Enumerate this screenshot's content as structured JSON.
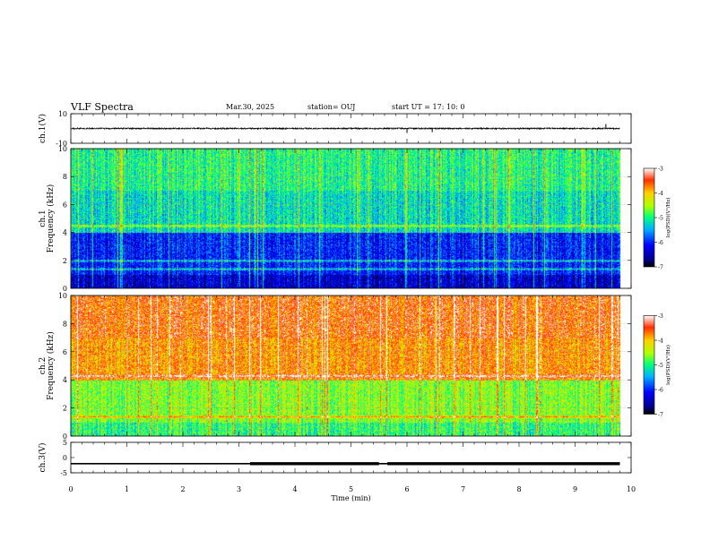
{
  "header": {
    "title": "VLF Spectra",
    "date": "Mar.30, 2025",
    "station": "station= OUJ",
    "start": "start  UT  =   17: 10: 0"
  },
  "chart_data": [
    {
      "type": "line",
      "panel": "ch1-waveform",
      "ylabel": "ch.1(V)",
      "ylim": [
        -10,
        10
      ],
      "yticks": [
        "10",
        "-10"
      ],
      "xlim": [
        0,
        10
      ],
      "series": [
        {
          "values": [
            0,
            0.1,
            0,
            -0.2,
            0.1,
            0,
            0.2,
            -0.1,
            0,
            0.1,
            0,
            -0.1
          ]
        }
      ],
      "spikes": [
        {
          "x": 6.0,
          "y": -3
        },
        {
          "x": 6.45,
          "y": -2.5
        },
        {
          "x": 9.55,
          "y": 3
        }
      ],
      "grid": false
    },
    {
      "type": "heatmap",
      "panel": "ch1-spectrogram",
      "ylabel": "ch.1\nFrequency (kHz)",
      "xlim": [
        0,
        10
      ],
      "ylim": [
        0,
        10
      ],
      "yticks": [
        "0",
        "2",
        "4",
        "6",
        "8",
        "10"
      ],
      "colorbar": {
        "label": "log(PSD)(V²/Hz)",
        "range": [
          -7,
          -3
        ],
        "ticks": [
          "-3",
          "-4",
          "-5",
          "-6",
          "-7"
        ]
      },
      "base_level": -5.4,
      "bright_bands_khz": [
        1.4,
        2.0,
        4.5
      ],
      "data_end_min": 9.8,
      "grid": true
    },
    {
      "type": "heatmap",
      "panel": "ch2-spectrogram",
      "ylabel": "ch.2\nFrequency (kHz)",
      "xlim": [
        0,
        10
      ],
      "ylim": [
        0,
        10
      ],
      "yticks": [
        "0",
        "2",
        "4",
        "6",
        "8",
        "10"
      ],
      "colorbar": {
        "label": "log(PSD)(V²/Hz)",
        "range": [
          -7,
          -3
        ],
        "ticks": [
          "-3",
          "-4",
          "-5",
          "-6",
          "-7"
        ]
      },
      "base_level": -4.0,
      "bright_bands_khz": [
        1.4,
        4.3
      ],
      "data_end_min": 9.8,
      "grid": true
    },
    {
      "type": "line",
      "panel": "ch3-waveform",
      "ylabel": "ch.3(V)",
      "ylim": [
        -5,
        5
      ],
      "yticks": [
        "5",
        "0",
        "-5"
      ],
      "xlim": [
        0,
        10
      ],
      "xticks": [
        "0",
        "1",
        "2",
        "3",
        "4",
        "5",
        "6",
        "7",
        "8",
        "9",
        "10"
      ],
      "xlabel": "Time  (min)",
      "series": [
        {
          "values": [
            -2,
            -2,
            -2,
            -2,
            -2,
            -2,
            -2,
            -2,
            -2,
            -2
          ]
        }
      ],
      "thick_segments": [
        [
          3.2,
          5.5
        ],
        [
          5.65,
          9.8
        ]
      ],
      "grid": false
    }
  ]
}
